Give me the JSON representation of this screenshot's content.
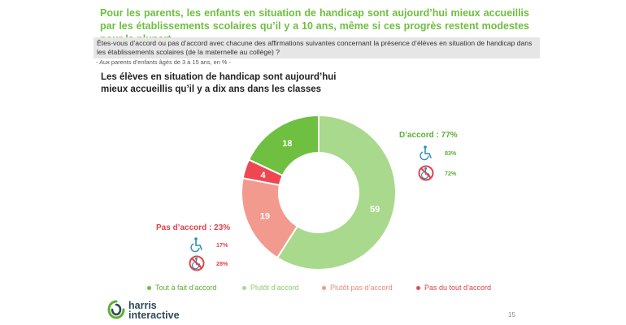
{
  "header": {
    "title": "Pour les parents, les enfants en situation de handicap sont aujourd’hui mieux accueillis par les établissements scolaires qu’il y a 10 ans, même si ces progrès restent modestes pour la plupart"
  },
  "question": {
    "text": "Êtes-vous d’accord ou pas d’accord avec chacune des affirmations suivantes concernant la présence d’élèves en situation de handicap dans les établissements scolaires (de la maternelle au collège) ?",
    "base": "- Aux parents d’enfants âgés de 3 à 15 ans, en % -"
  },
  "chart_data": {
    "type": "pie",
    "donut": true,
    "title": "Les élèves en situation de handicap sont aujourd’hui mieux accueillis qu’il y a dix ans dans les classes",
    "categories": [
      "Tout à fait d’accord",
      "Plutôt d’accord",
      "Plutôt pas d’accord",
      "Pas du tout d’accord"
    ],
    "values": [
      18,
      59,
      19,
      4
    ],
    "colors": [
      "#6fbf40",
      "#a9d98c",
      "#f39a8f",
      "#ee4752"
    ],
    "legend_position": "bottom"
  },
  "groups": {
    "agree": {
      "label": "D’accord : 77%",
      "color": "#5db033",
      "items": [
        {
          "icon": "wheelchair-icon",
          "value": "83%"
        },
        {
          "icon": "no-wheelchair-icon",
          "value": "72%"
        }
      ]
    },
    "disagree": {
      "label": "Pas d’accord : 23%",
      "color": "#e0424b",
      "items": [
        {
          "icon": "wheelchair-icon",
          "value": "17%"
        },
        {
          "icon": "no-wheelchair-icon",
          "value": "28%"
        }
      ]
    }
  },
  "footer": {
    "logo_text_line1": "harris",
    "logo_text_line2": "interactive",
    "page_number": "15"
  }
}
